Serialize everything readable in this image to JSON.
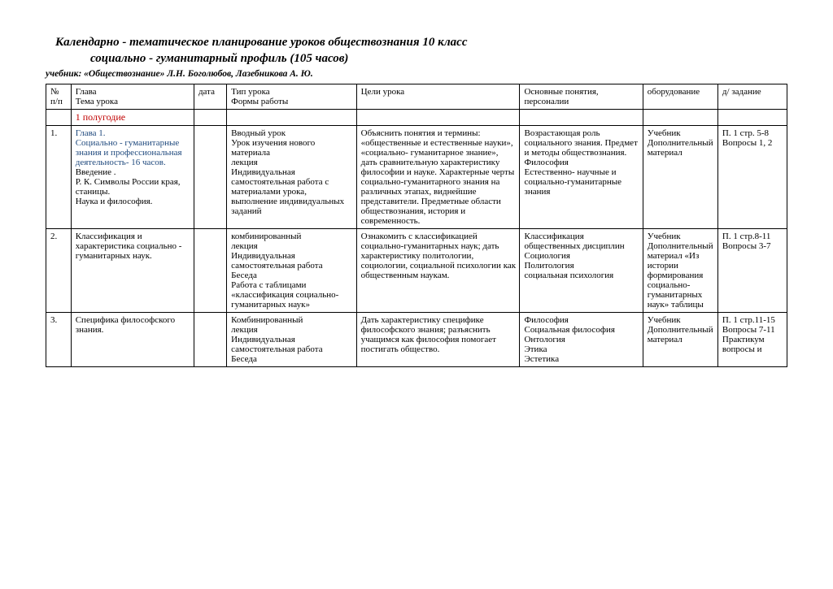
{
  "title": "Календарно - тематическое планирование уроков обществознания  10 класс",
  "subtitle": "социально - гуманитарный профиль  (105 часов)",
  "textbook": "учебник:  «Обществознание» Л.Н. Боголюбов,  Лазебникова А. Ю.",
  "columns": {
    "num": "№ п/п",
    "topic": "Глава\nТема урока",
    "date": "дата",
    "type": "Тип урока\nФормы работы",
    "goals": "Цели урока",
    "terms": "Основные понятия, персоналии",
    "equip": "оборудование",
    "hw": "д/ задание"
  },
  "semester": "1 полугодие",
  "rows": [
    {
      "num": "1.",
      "chapter": "Глава 1.\nСоциально - гуманитарные знания и профессиональная деятельность- 16 часов.",
      "topic_rest": " Введение .\nР. К.   Символы России края, станицы.\nНаука и философия.",
      "type": "Вводный урок\nУрок изучения нового материала\nлекция\nИндивидуальная самостоятельная работа с материалами урока, выполнение индивидуальных заданий",
      "goals": "Объяснить  понятия и термины: «общественные и естественные науки», «социально- гуманитарное знание», дать сравнительную характеристику философии и науке. Характерные черты социально-гуманитарного знания на различных этапах, виднейшие представители. Предметные области обществознания, история и современность.",
      "terms": "Возрастающая роль социального знания. Предмет и методы обществознания. Философия\nЕстественно- научные и социально-гуманитарные знания",
      "equip": "Учебник\nДополнительный материал",
      "hw": "П. 1 стр. 5-8\nВопросы 1, 2"
    },
    {
      "num": "2.",
      "topic": "Классификация и характеристика социально - гуманитарных наук.",
      "type": "комбинированный\nлекция\nИндивидуальная самостоятельная работа\nБеседа\nРабота с таблицами «классификация социально-гуманитарных наук»",
      "goals": "Ознакомить с классификацией социально-гуманитарных наук; дать характеристику политологии, социологии, социальной психологии как общественным наукам.",
      "terms": "Классификация общественных дисциплин\nСоциология\nПолитология\nсоциальная психология",
      "equip": "Учебник\nДополнительный материал «Из истории формирования социально-гуманитарных наук» таблицы",
      "hw": "П. 1 стр.8-11\nВопросы 3-7"
    },
    {
      "num": "3.",
      "topic": "Специфика философского знания.",
      "type": "Комбинированный\nлекция\nИндивидуальная самостоятельная работа\nБеседа",
      "goals": "Дать характеристику специфике философского знания;  разъяснить учащимся как философия помогает постигать общество.",
      "terms": "Философия\nСоциальная философия\nОнтология\nЭтика\nЭстетика",
      "equip": "Учебник\nДополнительный материал",
      "hw": "П. 1 стр.11-15\n Вопросы 7-11\n Практикум вопросы и"
    }
  ]
}
